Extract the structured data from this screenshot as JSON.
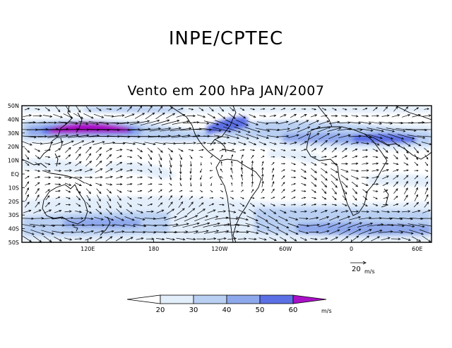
{
  "header": {
    "org_title": "INPE/CPTEC",
    "map_title": "Vento em 200 hPa JAN/2007"
  },
  "axes": {
    "lat_labels": [
      "50N",
      "40N",
      "30N",
      "20N",
      "10N",
      "EQ",
      "10S",
      "20S",
      "30S",
      "40S",
      "50S"
    ],
    "lon_labels": [
      {
        "text": "120E",
        "lon": 120
      },
      {
        "text": "180",
        "lon": 180
      },
      {
        "text": "120W",
        "lon": 240
      },
      {
        "text": "60W",
        "lon": 300
      },
      {
        "text": "0",
        "lon": 360
      },
      {
        "text": "60E",
        "lon": 420
      }
    ],
    "lon_range": [
      60,
      433
    ],
    "lat_range": [
      -50,
      50
    ]
  },
  "reference_vector": {
    "value": "20",
    "unit": "m/s"
  },
  "colorbar": {
    "ticks": [
      "20",
      "30",
      "40",
      "50",
      "60"
    ],
    "unit": "m/s",
    "colors": [
      "#ffffff",
      "#e3eefb",
      "#b9d0f3",
      "#8ea8ec",
      "#5c70e6",
      "#aa10c8"
    ]
  },
  "colors": {
    "land": "#000000",
    "frame": "#000000",
    "vector": "#000000"
  }
}
